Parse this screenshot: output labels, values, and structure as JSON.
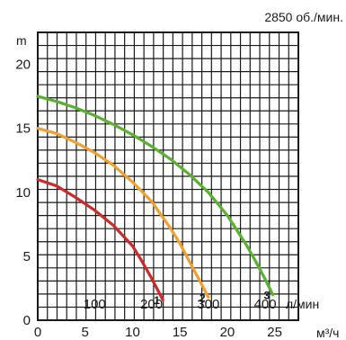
{
  "chart_data": {
    "type": "line",
    "title": "2850 об./мин.",
    "ylabel": "m",
    "xlabel_lpm": "л/мин",
    "xlabel_m3h": "м³/ч",
    "ylim": [
      0,
      22.5
    ],
    "xlim_m3h": [
      0,
      27.5
    ],
    "y_ticks": [
      0,
      5,
      10,
      15,
      20
    ],
    "x_ticks_lpm": [
      100,
      200,
      300,
      400
    ],
    "x_ticks_m3h": [
      0,
      5,
      10,
      15,
      20,
      25
    ],
    "grid": true,
    "series": [
      {
        "name": "1",
        "color": "#cc2a2a",
        "x": [
          0,
          2,
          4,
          6,
          8,
          10,
          11,
          12,
          12.7,
          13.2
        ],
        "y": [
          11,
          10.5,
          9.6,
          8.6,
          7.4,
          5.8,
          4.6,
          3.3,
          2.3,
          1.6
        ]
      },
      {
        "name": "2",
        "color": "#f0a030",
        "x": [
          0,
          2,
          4,
          6,
          8,
          10,
          12,
          14,
          15,
          16,
          17,
          18
        ],
        "y": [
          15,
          14.6,
          13.9,
          13.1,
          12.1,
          10.8,
          9.3,
          7.2,
          6.0,
          4.6,
          3.2,
          1.8
        ]
      },
      {
        "name": "3",
        "color": "#5ab030",
        "x": [
          0,
          2,
          4,
          6,
          8,
          10,
          12,
          14,
          16,
          18,
          20,
          22,
          23,
          24,
          24.8
        ],
        "y": [
          17.5,
          17.1,
          16.6,
          16.0,
          15.3,
          14.5,
          13.6,
          12.6,
          11.4,
          10.0,
          8.2,
          5.9,
          4.6,
          3.2,
          2.0
        ]
      }
    ]
  }
}
